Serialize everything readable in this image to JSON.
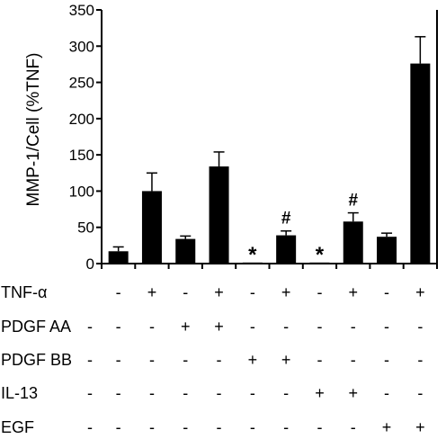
{
  "chart_data": {
    "type": "bar",
    "ylabel": "MMP-1/Cell (%TNF)",
    "ylim": [
      0,
      350
    ],
    "yticks": [
      0,
      50,
      100,
      150,
      200,
      250,
      300,
      350
    ],
    "bar_color": "#000000",
    "values": [
      17,
      100,
      34,
      134,
      0,
      39,
      0,
      58,
      37,
      276
    ],
    "errors": [
      6,
      25,
      4,
      20,
      0,
      6,
      0,
      12,
      5,
      37
    ],
    "annotations": [
      "",
      "",
      "",
      "",
      "*",
      "#",
      "*",
      "#",
      "",
      ""
    ],
    "treatments": [
      {
        "label": "TNF-α",
        "signs": [
          "-",
          "+",
          "-",
          "+",
          "-",
          "+",
          "-",
          "+",
          "-",
          "+"
        ]
      },
      {
        "label": "PDGF AA",
        "signs": [
          "-",
          "-",
          "+",
          "+",
          "-",
          "-",
          "-",
          "-",
          "-",
          "-"
        ]
      },
      {
        "label": "PDGF BB",
        "signs": [
          "-",
          "-",
          "-",
          "-",
          "+",
          "+",
          "-",
          "-",
          "-",
          "-"
        ]
      },
      {
        "label": "IL-13",
        "signs": [
          "-",
          "-",
          "-",
          "-",
          "-",
          "-",
          "+",
          "+",
          "-",
          "-"
        ]
      },
      {
        "label": "EGF",
        "signs": [
          "-",
          "-",
          "-",
          "-",
          "-",
          "-",
          "-",
          "-",
          "+",
          "+"
        ]
      }
    ]
  }
}
